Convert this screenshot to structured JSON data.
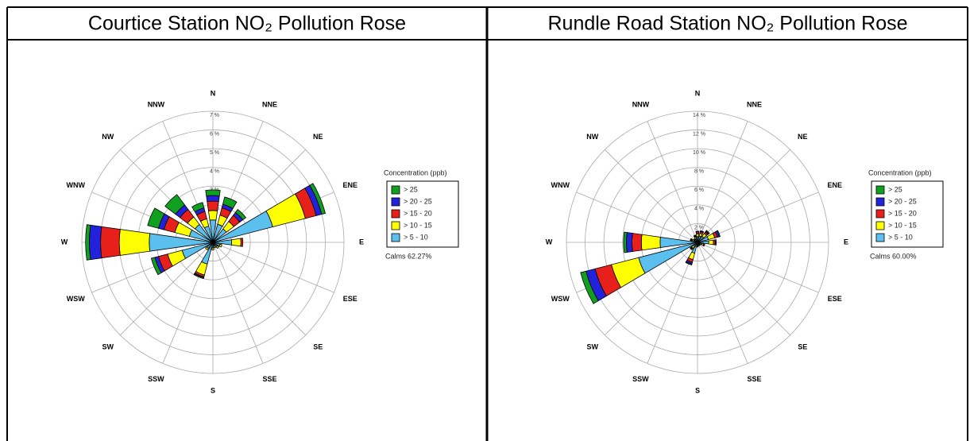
{
  "chart_data": [
    {
      "type": "rose",
      "title": "Courtice Station NO₂ Pollution Rose",
      "categories": [
        "N",
        "NNE",
        "NE",
        "ENE",
        "E",
        "ESE",
        "SE",
        "SSE",
        "S",
        "SSW",
        "SW",
        "WSW",
        "W",
        "WNW",
        "NW",
        "NNW"
      ],
      "legend_title": "Concentration (ppb)",
      "calms_label": "Calms 62.27%",
      "rlim": [
        0,
        7
      ],
      "rticks": [
        {
          "value": 1,
          "label": "1 %"
        },
        {
          "value": 2,
          "label": "2 %"
        },
        {
          "value": 3,
          "label": "3 %"
        },
        {
          "value": 4,
          "label": "4 %"
        },
        {
          "value": 5,
          "label": "5 %"
        },
        {
          "value": 6,
          "label": "6 %"
        },
        {
          "value": 7,
          "label": "7 %"
        }
      ],
      "series": [
        {
          "name": "> 5 - 10",
          "color": "#5bc0ee",
          "values": [
            1.2,
            1.0,
            0.9,
            3.3,
            1.0,
            0.4,
            0.3,
            0.2,
            0.3,
            1.2,
            0.4,
            1.7,
            3.4,
            1.3,
            1.2,
            0.9
          ]
        },
        {
          "name": "> 10 - 15",
          "color": "#ffff00",
          "values": [
            0.5,
            0.5,
            0.5,
            1.8,
            0.5,
            0.1,
            0.1,
            0.1,
            0.1,
            0.6,
            0.1,
            0.8,
            1.6,
            0.8,
            0.5,
            0.4
          ]
        },
        {
          "name": "> 15 - 20",
          "color": "#e8201c",
          "values": [
            0.5,
            0.4,
            0.4,
            0.6,
            0.1,
            0,
            0,
            0,
            0,
            0.1,
            0,
            0.5,
            1.0,
            0.6,
            0.5,
            0.4
          ]
        },
        {
          "name": "> 20 - 25",
          "color": "#2222dd",
          "values": [
            0.3,
            0.2,
            0.2,
            0.3,
            0,
            0,
            0,
            0,
            0,
            0.05,
            0,
            0.2,
            0.6,
            0.3,
            0.3,
            0.2
          ]
        },
        {
          "name": "> 25",
          "color": "#10a020",
          "values": [
            0.3,
            0.4,
            0.2,
            0.2,
            0,
            0,
            0,
            0,
            0,
            0.05,
            0,
            0.2,
            0.2,
            0.6,
            0.7,
            0.3
          ]
        }
      ]
    },
    {
      "type": "rose",
      "title": "Rundle Road Station NO₂ Pollution Rose",
      "categories": [
        "N",
        "NNE",
        "NE",
        "ENE",
        "E",
        "ESE",
        "SE",
        "SSE",
        "S",
        "SSW",
        "SW",
        "WSW",
        "W",
        "WNW",
        "NW",
        "NNW"
      ],
      "legend_title": "Concentration (ppb)",
      "calms_label": "Calms 60.00%",
      "rlim": [
        0,
        14
      ],
      "rticks": [
        {
          "value": 2,
          "label": "2 %"
        },
        {
          "value": 4,
          "label": "4 %"
        },
        {
          "value": 6,
          "label": "6 %"
        },
        {
          "value": 8,
          "label": "8 %"
        },
        {
          "value": 10,
          "label": "10 %"
        },
        {
          "value": 12,
          "label": "12 %"
        },
        {
          "value": 14,
          "label": "14 %"
        }
      ],
      "series": [
        {
          "name": "> 5 - 10",
          "color": "#5bc0ee",
          "values": [
            0.6,
            0.7,
            0.8,
            1.2,
            1.2,
            0.5,
            0.3,
            0.3,
            0.4,
            1.2,
            0.5,
            6.5,
            4.0,
            0.4,
            0.3,
            0.4
          ]
        },
        {
          "name": "> 10 - 15",
          "color": "#ffff00",
          "values": [
            0.3,
            0.3,
            0.4,
            0.7,
            0.5,
            0.2,
            0.1,
            0.1,
            0.1,
            0.7,
            0.3,
            3.0,
            2.0,
            0.2,
            0.1,
            0.2
          ]
        },
        {
          "name": "> 15 - 20",
          "color": "#e8201c",
          "values": [
            0.2,
            0.2,
            0.2,
            0.3,
            0.2,
            0.1,
            0,
            0,
            0,
            0.3,
            0.1,
            1.8,
            1.0,
            0.1,
            0.1,
            0.1
          ]
        },
        {
          "name": "> 20 - 25",
          "color": "#2222dd",
          "values": [
            0.1,
            0.1,
            0.1,
            0.2,
            0.1,
            0,
            0,
            0,
            0,
            0.2,
            0.05,
            1.0,
            0.6,
            0.05,
            0,
            0.05
          ]
        },
        {
          "name": "> 25",
          "color": "#10a020",
          "values": [
            0,
            0,
            0.1,
            0.1,
            0,
            0,
            0,
            0,
            0,
            0.1,
            0.05,
            0.6,
            0.3,
            0.05,
            0,
            0.05
          ]
        }
      ]
    }
  ]
}
